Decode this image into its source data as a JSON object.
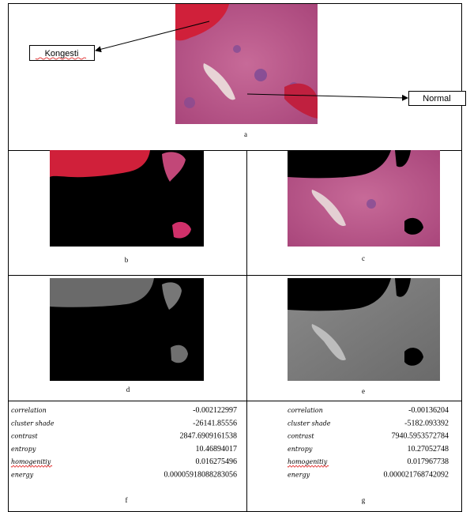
{
  "panel_a": {
    "label_left": "Kongesti",
    "label_right": "Normal",
    "caption": "a"
  },
  "panel_b": {
    "caption": "b"
  },
  "panel_c": {
    "caption": "c"
  },
  "panel_d": {
    "caption": "d"
  },
  "panel_e": {
    "caption": "e"
  },
  "panel_f": {
    "caption": "f",
    "rows": [
      [
        "correlation",
        "-0.002122997"
      ],
      [
        "cluster shade",
        "-26141.85556"
      ],
      [
        "contrast",
        "2847.6909161538"
      ],
      [
        "entropy",
        "10.46894017"
      ],
      [
        "homogenitiy",
        "0.016275496"
      ],
      [
        "energy",
        "0.00005918088283056"
      ]
    ]
  },
  "panel_g": {
    "caption": "g",
    "rows": [
      [
        "correlation",
        "-0.00136204"
      ],
      [
        "cluster shade",
        "-5182.093392"
      ],
      [
        "contrast",
        "7940.5953572784"
      ],
      [
        "entropy",
        "10.27052748"
      ],
      [
        "homogenitiy",
        "0.017967738"
      ],
      [
        "energy",
        "0.000021768742092"
      ]
    ]
  }
}
